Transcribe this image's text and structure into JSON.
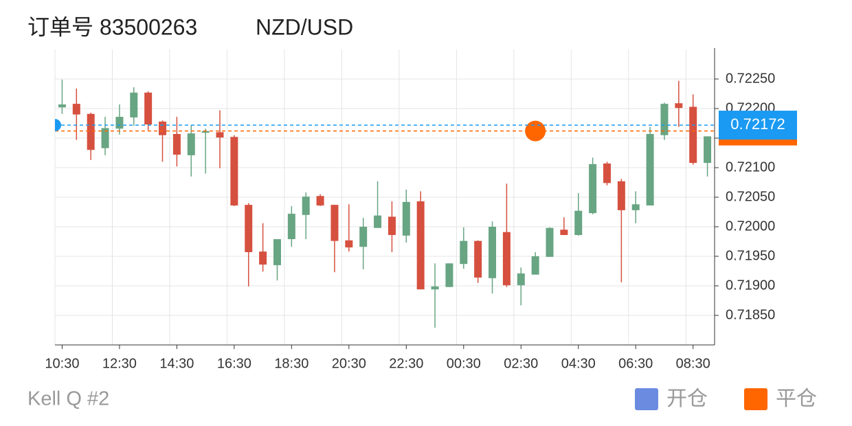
{
  "chart_data": {
    "type": "candlestick",
    "title": "订单号 83500263",
    "subtitle": "NZD/USD",
    "footer": "Kell Q #2",
    "categories": [
      "10:30",
      null,
      null,
      null,
      "12:30",
      null,
      null,
      null,
      "14:30",
      null,
      null,
      null,
      "16:30",
      null,
      null,
      null,
      "18:30",
      null,
      null,
      null,
      "20:30",
      null,
      null,
      null,
      "22:30",
      null,
      null,
      null,
      "00:30",
      null,
      null,
      null,
      "02:30",
      null,
      null,
      null,
      "04:30",
      null,
      null,
      null,
      "06:30",
      null,
      null,
      null,
      "08:30",
      null
    ],
    "open": [
      0.72202,
      0.72208,
      0.72191,
      0.72133,
      0.72166,
      0.72185,
      0.72227,
      0.72178,
      0.72157,
      0.72121,
      0.72159,
      0.7216,
      0.72152,
      0.72037,
      0.71958,
      0.71935,
      0.71979,
      0.7202,
      0.72052,
      0.72037,
      0.71977,
      0.71966,
      0.71998,
      0.72017,
      0.71985,
      0.72043,
      0.71894,
      0.71898,
      0.71937,
      0.71976,
      0.71913,
      0.71991,
      0.71901,
      0.71919,
      0.71949,
      0.71995,
      0.71986,
      0.72023,
      0.72107,
      0.72077,
      0.72028,
      0.72036,
      0.72155,
      0.72209,
      0.72203,
      0.72108
    ],
    "high": [
      0.72249,
      0.72234,
      0.72193,
      0.72186,
      0.72207,
      0.72236,
      0.72229,
      0.7218,
      0.72186,
      0.72172,
      0.72166,
      0.72197,
      0.72155,
      0.7204,
      0.72006,
      0.71979,
      0.72035,
      0.72058,
      0.72055,
      0.72037,
      0.72038,
      0.72015,
      0.72077,
      0.72043,
      0.72063,
      0.7206,
      0.71938,
      0.71938,
      0.71999,
      0.71977,
      0.72009,
      0.72073,
      0.71931,
      0.71957,
      0.71999,
      0.72016,
      0.72057,
      0.72117,
      0.7211,
      0.72081,
      0.7206,
      0.72169,
      0.7221,
      0.72247,
      0.72224,
      0.72153
    ],
    "low": [
      0.72191,
      0.72147,
      0.72113,
      0.72121,
      0.72156,
      0.72171,
      0.72163,
      0.7211,
      0.72102,
      0.72085,
      0.7209,
      0.72099,
      0.72035,
      0.71899,
      0.71924,
      0.71909,
      0.71966,
      0.71979,
      0.72035,
      0.71923,
      0.71958,
      0.71928,
      0.71998,
      0.71957,
      0.71973,
      0.71894,
      0.71829,
      0.71898,
      0.71929,
      0.71905,
      0.71887,
      0.71898,
      0.71867,
      0.71919,
      0.71949,
      0.71986,
      0.71985,
      0.72021,
      0.7207,
      0.71906,
      0.72006,
      0.72036,
      0.72147,
      0.72169,
      0.72105,
      0.72085
    ],
    "close": [
      0.72207,
      0.7219,
      0.7213,
      0.72167,
      0.72186,
      0.72227,
      0.72173,
      0.72155,
      0.72122,
      0.72158,
      0.72162,
      0.72151,
      0.72036,
      0.71957,
      0.71936,
      0.71979,
      0.72022,
      0.72051,
      0.72036,
      0.71976,
      0.71965,
      0.72,
      0.72019,
      0.71986,
      0.72042,
      0.71894,
      0.71899,
      0.71938,
      0.71976,
      0.71914,
      0.72,
      0.71901,
      0.71921,
      0.7195,
      0.71998,
      0.71986,
      0.72027,
      0.72106,
      0.72074,
      0.72028,
      0.72038,
      0.72157,
      0.72208,
      0.72201,
      0.72108,
      0.72153
    ],
    "up_color": "#68a583",
    "down_color": "#d6503f",
    "markers": [
      {
        "name": "开仓",
        "color": "#6b8be0",
        "line_color": "#1a9af2",
        "value": 0.72172
      },
      {
        "name": "平仓",
        "color": "#ff6600",
        "line_color": "#ff6600",
        "value": 0.72162,
        "category_index": 33
      }
    ],
    "ylim": [
      0.718,
      0.723
    ],
    "yticks": [
      {
        "value": 0.7185,
        "label": "0.71850"
      },
      {
        "value": 0.719,
        "label": "0.71900"
      },
      {
        "value": 0.7195,
        "label": "0.71950"
      },
      {
        "value": 0.72,
        "label": "0.72000"
      },
      {
        "value": 0.7205,
        "label": "0.72050"
      },
      {
        "value": 0.721,
        "label": "0.72100"
      },
      {
        "value": 0.7215,
        "label": "0.72150"
      },
      {
        "value": 0.722,
        "label": "0.72200"
      },
      {
        "value": 0.7225,
        "label": "0.72250"
      }
    ],
    "grid": true
  }
}
